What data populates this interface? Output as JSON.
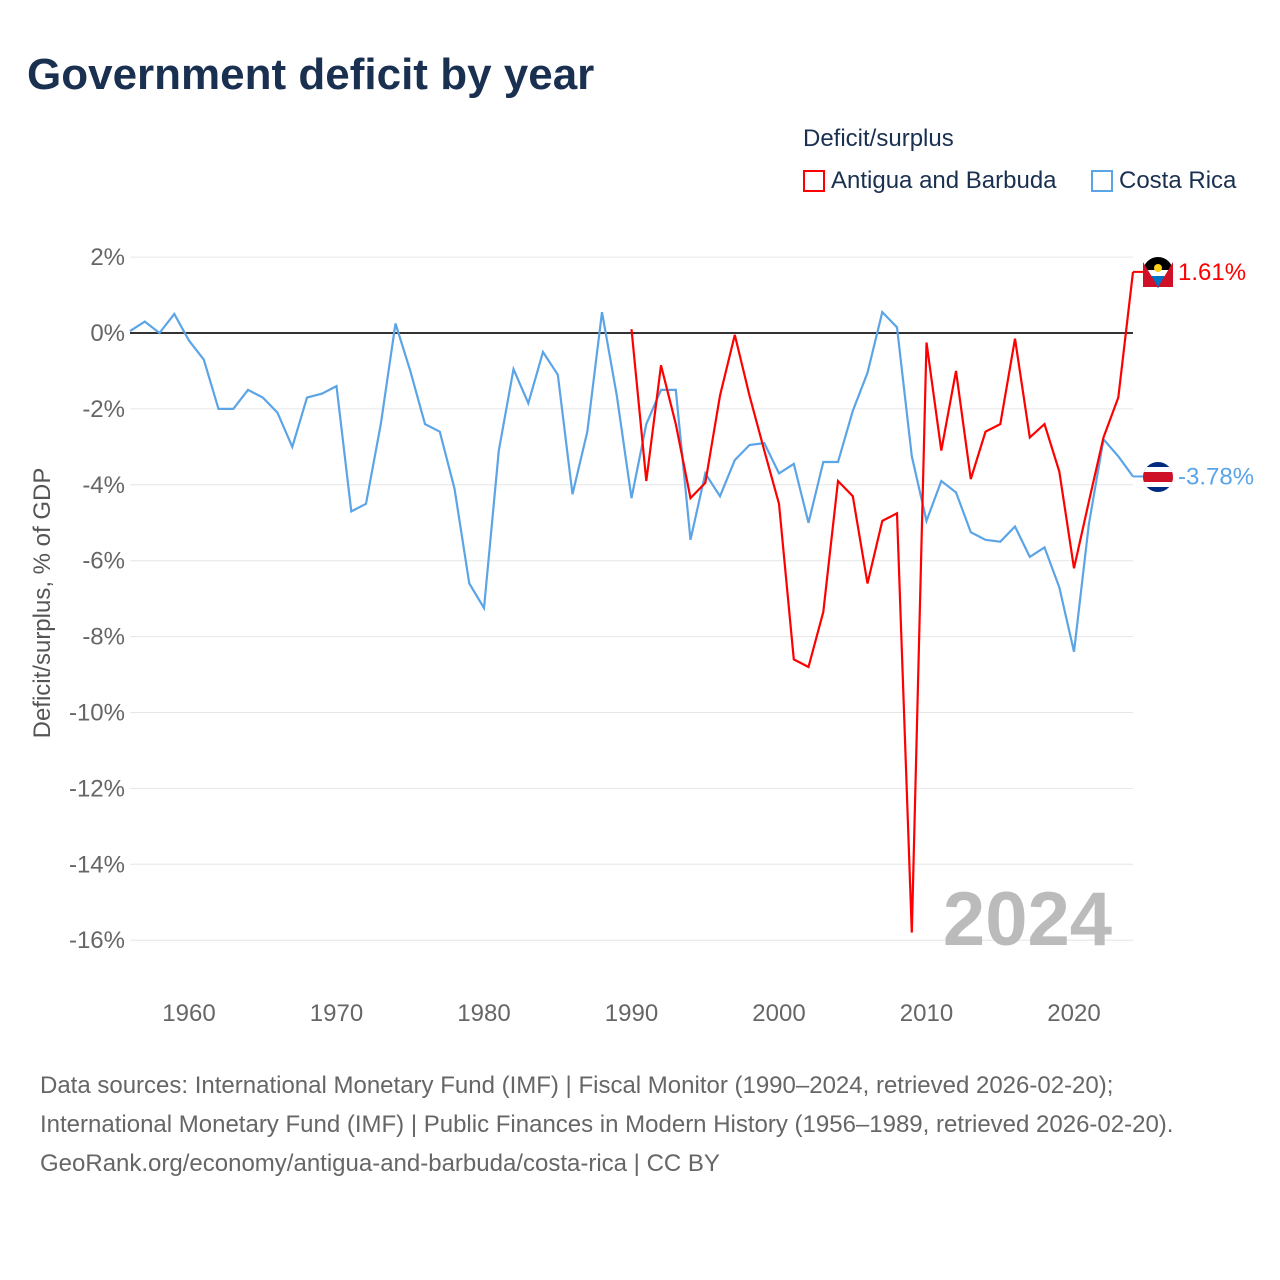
{
  "title": "Government deficit by year",
  "legend": {
    "title": "Deficit/surplus",
    "items": [
      {
        "label": "Antigua and Barbuda",
        "color": "#ff0000"
      },
      {
        "label": "Costa Rica",
        "color": "#5ba4e6"
      }
    ]
  },
  "chart_data": {
    "type": "line",
    "title": "Government deficit by year",
    "xlabel": "",
    "ylabel": "Deficit/surplus, % of GDP",
    "xlim": [
      1956,
      2024
    ],
    "ylim": [
      -17,
      2.5
    ],
    "x_ticks": [
      1960,
      1970,
      1980,
      1990,
      2000,
      2010,
      2020
    ],
    "y_ticks": [
      2,
      0,
      -2,
      -4,
      -6,
      -8,
      -10,
      -12,
      -14,
      -16
    ],
    "y_tick_labels": [
      "2%",
      "0%",
      "-2%",
      "-4%",
      "-6%",
      "-8%",
      "-10%",
      "-12%",
      "-14%",
      "-16%"
    ],
    "grid": true,
    "legend_position": "top-right",
    "year_watermark": "2024",
    "series": [
      {
        "name": "Antigua and Barbuda",
        "color": "#ff0000",
        "start_year": 1990,
        "end_label": "1.61%",
        "values": [
          0.1,
          -3.9,
          -0.85,
          -2.4,
          -4.35,
          -3.95,
          -1.65,
          -0.05,
          -1.65,
          -3.1,
          -4.5,
          -8.6,
          -8.8,
          -7.35,
          -3.9,
          -4.3,
          -6.6,
          -4.95,
          -4.75,
          -15.8,
          -0.25,
          -3.1,
          -1.0,
          -3.85,
          -2.6,
          -2.4,
          -0.15,
          -2.75,
          -2.4,
          -3.65,
          -6.2,
          -4.45,
          -2.75,
          -1.7,
          1.61
        ]
      },
      {
        "name": "Costa Rica",
        "color": "#5ba4e6",
        "start_year": 1956,
        "end_label": "-3.78%",
        "values": [
          0.05,
          0.3,
          0.0,
          0.5,
          -0.2,
          -0.7,
          -2.0,
          -2.0,
          -1.5,
          -1.7,
          -2.1,
          -3.0,
          -1.7,
          -1.6,
          -1.4,
          -4.7,
          -4.5,
          -2.4,
          0.25,
          -1.0,
          -2.4,
          -2.6,
          -4.1,
          -6.6,
          -7.25,
          -3.1,
          -0.95,
          -1.85,
          -0.5,
          -1.1,
          -4.25,
          -2.6,
          0.55,
          -1.65,
          -4.35,
          -2.4,
          -1.5,
          -1.5,
          -5.45,
          -3.7,
          -4.3,
          -3.35,
          -2.95,
          -2.9,
          -3.7,
          -3.45,
          -5.0,
          -3.4,
          -3.4,
          -2.05,
          -1.05,
          0.55,
          0.15,
          -3.25,
          -4.95,
          -3.9,
          -4.2,
          -5.25,
          -5.45,
          -5.5,
          -5.1,
          -5.9,
          -5.65,
          -6.7,
          -8.4,
          -5.05,
          -2.8,
          -3.25,
          -3.78
        ]
      }
    ]
  },
  "sources": {
    "line1": "Data sources: International Monetary Fund (IMF) | Fiscal Monitor (1990–2024, retrieved 2026-02-20); International Monetary Fund (IMF) | Public Finances in Modern History (1956–1989, retrieved 2026-02-20).",
    "line2": "GeoRank.org/economy/antigua-and-barbuda/costa-rica | CC BY"
  }
}
